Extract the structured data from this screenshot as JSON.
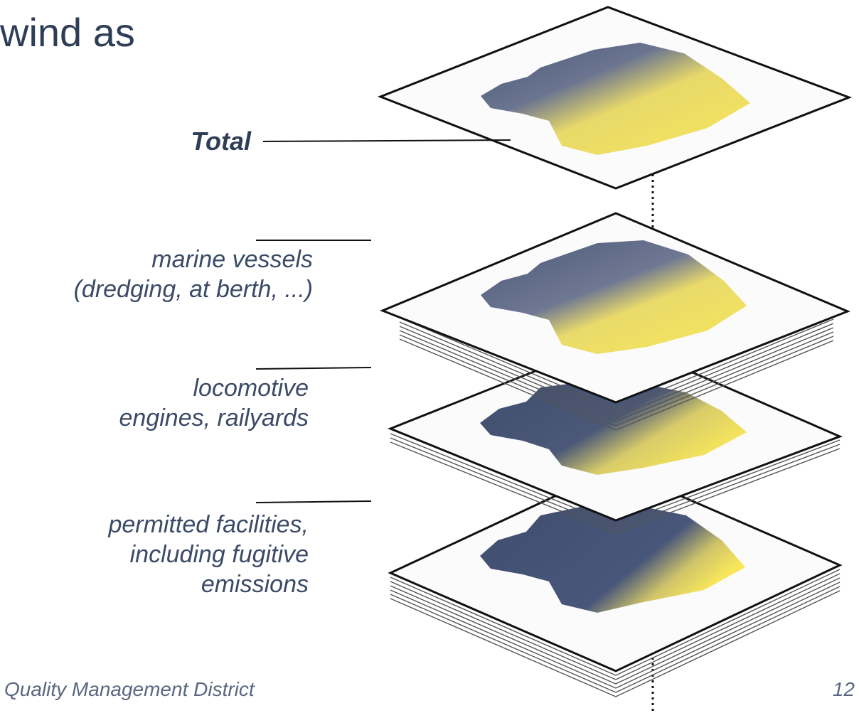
{
  "slide": {
    "title_fragment": "wind as",
    "footer_left": "Quality Management District",
    "page_number": "12"
  },
  "layers": [
    {
      "id": "total",
      "label_lines": [
        "Total"
      ]
    },
    {
      "id": "marine",
      "label_lines": [
        "marine vessels",
        "(dredging, at berth, ...)"
      ]
    },
    {
      "id": "locomotive",
      "label_lines": [
        "locomotive",
        "engines, railyards"
      ]
    },
    {
      "id": "permitted",
      "label_lines": [
        "permitted facilities,",
        "including fugitive",
        "emissions"
      ]
    }
  ],
  "colors": {
    "low": "#3f4d6e",
    "high": "#f7e65a",
    "text": "#3b4a66",
    "frame": "#111111"
  }
}
